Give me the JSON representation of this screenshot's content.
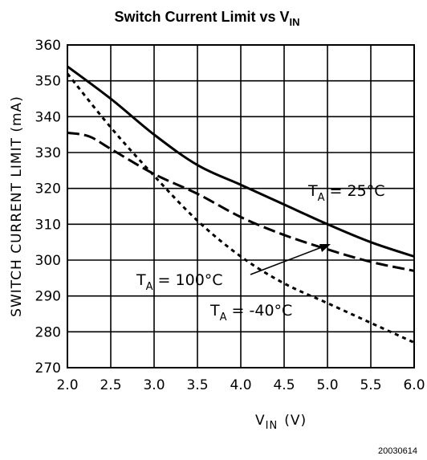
{
  "chart_data": {
    "type": "line",
    "title": "Switch Current Limit vs V",
    "title_sub": "IN",
    "xlabel": "V",
    "xlabel_sub": "IN",
    "xlabel_unit": "(V)",
    "ylabel": "SWITCH CURRENT LIMIT (mA)",
    "xlim": [
      2.0,
      6.0
    ],
    "ylim": [
      270,
      360
    ],
    "xticks": [
      "2.0",
      "2.5",
      "3.0",
      "3.5",
      "4.0",
      "4.5",
      "5.0",
      "5.5",
      "6.0"
    ],
    "yticks": [
      "360",
      "350",
      "340",
      "330",
      "320",
      "310",
      "300",
      "290",
      "280",
      "270"
    ],
    "grid": true,
    "series": [
      {
        "name": "T_A = 25°C",
        "style": "solid",
        "x": [
          2.0,
          2.5,
          3.0,
          3.5,
          4.0,
          4.5,
          5.0,
          5.5,
          6.0
        ],
        "y": [
          354,
          345,
          335,
          326.5,
          321,
          315.5,
          310,
          305,
          301
        ]
      },
      {
        "name": "T_A = 100°C",
        "style": "dashed",
        "x": [
          2.0,
          2.25,
          2.5,
          3.0,
          3.5,
          4.0,
          4.5,
          5.0,
          5.5,
          6.0
        ],
        "y": [
          335.5,
          334.5,
          331,
          324,
          318.5,
          312,
          307,
          303,
          299.5,
          297
        ]
      },
      {
        "name": "T_A = -40°C",
        "style": "dotted",
        "x": [
          2.0,
          2.5,
          3.0,
          3.5,
          4.0,
          4.5,
          5.0,
          5.5,
          6.0
        ],
        "y": [
          352,
          337,
          323.5,
          311,
          301,
          293.5,
          288,
          282.5,
          277
        ]
      }
    ],
    "annotations": [
      {
        "main": "T",
        "sub": "A",
        "rest": " = 25°C"
      },
      {
        "main": "T",
        "sub": "A",
        "rest": " = 100°C"
      },
      {
        "main": "T",
        "sub": "A",
        "rest": " = -40°C"
      }
    ]
  },
  "figure_code": "20030614"
}
